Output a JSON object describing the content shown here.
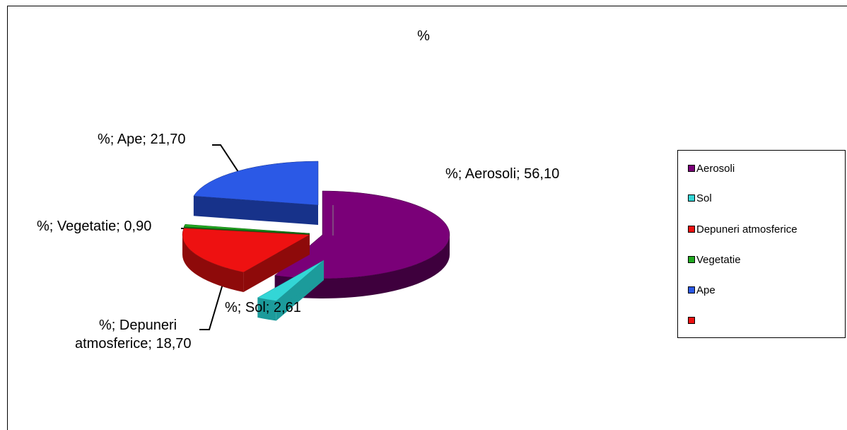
{
  "chart_data": {
    "type": "pie",
    "title": "%",
    "slices": [
      {
        "name": "Aerosoli",
        "value": 56.1,
        "color": "#7a0078",
        "dark": "#3e003d",
        "label": "%; Aerosoli; 56,10"
      },
      {
        "name": "Sol",
        "value": 2.61,
        "color": "#33d6d6",
        "dark": "#1c9b9b",
        "label": "%; Sol; 2,61"
      },
      {
        "name": "Depuneri atmosferice",
        "value": 18.7,
        "color": "#ee1111",
        "dark": "#8e0a0a",
        "label_line1": "%; Depuneri",
        "label_line2": "atmosferice; 18,70"
      },
      {
        "name": "Vegetatie",
        "value": 0.9,
        "color": "#22aa22",
        "dark": "#146614",
        "label": "%; Vegetatie; 0,90"
      },
      {
        "name": "Ape",
        "value": 21.7,
        "color": "#2b59e6",
        "dark": "#17328a",
        "label": "%; Ape; 21,70"
      }
    ],
    "legend": {
      "placement": "right",
      "entries": [
        {
          "label": "Aerosoli",
          "color": "#7a0078"
        },
        {
          "label": "Sol",
          "color": "#33d6d6"
        },
        {
          "label": "Depuneri atmosferice",
          "color": "#ee1111"
        },
        {
          "label": "Vegetatie",
          "color": "#22aa22"
        },
        {
          "label": "Ape",
          "color": "#2b59e6"
        },
        {
          "label": "",
          "color": "#ee1111"
        }
      ]
    }
  }
}
